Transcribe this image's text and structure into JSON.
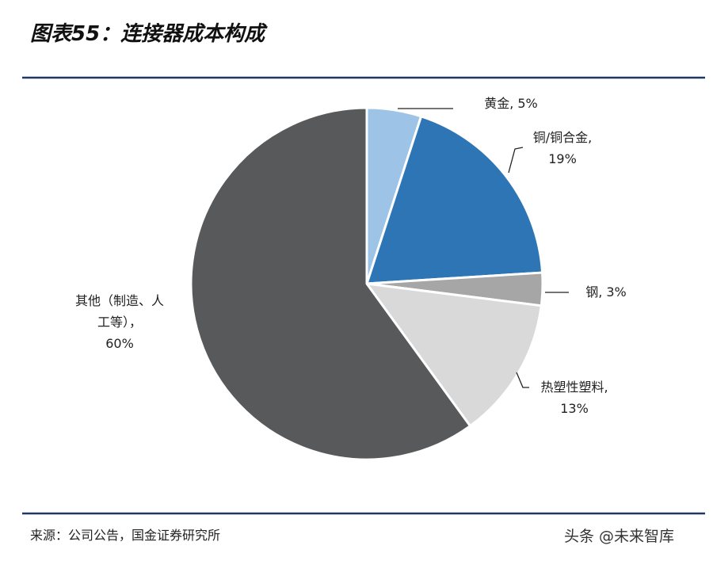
{
  "chart_data": {
    "type": "pie",
    "title": "图表55：连接器成本构成",
    "categories": [
      "黄金,",
      "铜/铜合金,",
      "钢,",
      "热塑性塑料,",
      "其他（制造、人工等），"
    ],
    "values": [
      5,
      19,
      3,
      13,
      60
    ],
    "value_labels": [
      "5%",
      "19%",
      "3%",
      "13%",
      "60%"
    ],
    "colors": [
      "#9dc3e6",
      "#2e75b6",
      "#a6a6a6",
      "#d9d9d9",
      "#58595b"
    ],
    "source": "来源：公司公告，国金证券研究所",
    "watermark": "头条 @未来智库"
  }
}
